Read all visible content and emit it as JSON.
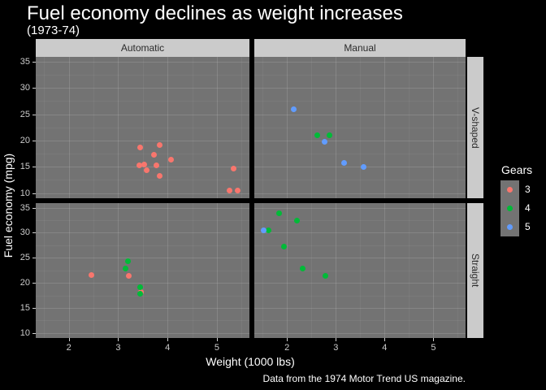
{
  "title": "Fuel economy declines as weight increases",
  "subtitle": "(1973-74)",
  "caption": "Data from the 1974 Motor Trend US magazine.",
  "axes": {
    "x_title": "Weight (1000 lbs)",
    "y_title": "Fuel economy (mpg)",
    "x_ticks": [
      2,
      3,
      4,
      5
    ],
    "y_ticks": [
      10,
      15,
      20,
      25,
      30,
      35
    ]
  },
  "facets": {
    "col_labels": [
      "Automatic",
      "Manual"
    ],
    "row_labels": [
      "V-shaped",
      "Straight"
    ]
  },
  "legend": {
    "title": "Gears",
    "items": [
      {
        "label": "3",
        "color": "#f8766d"
      },
      {
        "label": "4",
        "color": "#00ba38"
      },
      {
        "label": "5",
        "color": "#619cff"
      }
    ]
  },
  "colors": {
    "background": "#000000",
    "panel": "#737373",
    "strip_background": "#cbcbcb",
    "strip_text": "#2b2b2b",
    "tick_text": "#cccccc",
    "title_text": "#ffffff"
  },
  "chart_data": {
    "type": "scatter",
    "title": "Fuel economy declines as weight increases",
    "subtitle": "(1973-74)",
    "xlabel": "Weight (1000 lbs)",
    "ylabel": "Fuel economy (mpg)",
    "facet_cols": [
      "Automatic",
      "Manual"
    ],
    "facet_rows": [
      "V-shaped",
      "Straight"
    ],
    "color_by": "Gears",
    "x_domain": [
      1.33,
      5.66
    ],
    "y_domain": [
      9.0,
      35.9
    ],
    "x_major": [
      2,
      3,
      4,
      5
    ],
    "y_major": [
      10,
      15,
      20,
      25,
      30,
      35
    ],
    "x_minor": [
      1.5,
      2.5,
      3.5,
      4.5,
      5.5
    ],
    "y_minor": [
      12.5,
      17.5,
      22.5,
      27.5,
      32.5
    ],
    "grid": true,
    "legend_position": "right",
    "points": [
      {
        "wt": 3.44,
        "mpg": 18.7,
        "gear": 3,
        "transmission": "Automatic",
        "engine": "V-shaped"
      },
      {
        "wt": 3.57,
        "mpg": 14.3,
        "gear": 3,
        "transmission": "Automatic",
        "engine": "V-shaped"
      },
      {
        "wt": 4.07,
        "mpg": 16.4,
        "gear": 3,
        "transmission": "Automatic",
        "engine": "V-shaped"
      },
      {
        "wt": 3.73,
        "mpg": 17.3,
        "gear": 3,
        "transmission": "Automatic",
        "engine": "V-shaped"
      },
      {
        "wt": 3.78,
        "mpg": 15.2,
        "gear": 3,
        "transmission": "Automatic",
        "engine": "V-shaped"
      },
      {
        "wt": 5.25,
        "mpg": 10.4,
        "gear": 3,
        "transmission": "Automatic",
        "engine": "V-shaped"
      },
      {
        "wt": 5.424,
        "mpg": 10.4,
        "gear": 3,
        "transmission": "Automatic",
        "engine": "V-shaped"
      },
      {
        "wt": 5.345,
        "mpg": 14.7,
        "gear": 3,
        "transmission": "Automatic",
        "engine": "V-shaped"
      },
      {
        "wt": 3.52,
        "mpg": 15.5,
        "gear": 3,
        "transmission": "Automatic",
        "engine": "V-shaped"
      },
      {
        "wt": 3.435,
        "mpg": 15.2,
        "gear": 3,
        "transmission": "Automatic",
        "engine": "V-shaped"
      },
      {
        "wt": 3.84,
        "mpg": 13.3,
        "gear": 3,
        "transmission": "Automatic",
        "engine": "V-shaped"
      },
      {
        "wt": 3.845,
        "mpg": 19.2,
        "gear": 3,
        "transmission": "Automatic",
        "engine": "V-shaped"
      },
      {
        "wt": 2.62,
        "mpg": 21.0,
        "gear": 4,
        "transmission": "Manual",
        "engine": "V-shaped"
      },
      {
        "wt": 2.875,
        "mpg": 21.0,
        "gear": 4,
        "transmission": "Manual",
        "engine": "V-shaped"
      },
      {
        "wt": 2.14,
        "mpg": 26.0,
        "gear": 5,
        "transmission": "Manual",
        "engine": "V-shaped"
      },
      {
        "wt": 3.17,
        "mpg": 15.8,
        "gear": 5,
        "transmission": "Manual",
        "engine": "V-shaped"
      },
      {
        "wt": 2.77,
        "mpg": 19.7,
        "gear": 5,
        "transmission": "Manual",
        "engine": "V-shaped"
      },
      {
        "wt": 3.57,
        "mpg": 15.0,
        "gear": 5,
        "transmission": "Manual",
        "engine": "V-shaped"
      },
      {
        "wt": 3.215,
        "mpg": 21.4,
        "gear": 3,
        "transmission": "Automatic",
        "engine": "Straight"
      },
      {
        "wt": 3.46,
        "mpg": 18.1,
        "gear": 3,
        "transmission": "Automatic",
        "engine": "Straight"
      },
      {
        "wt": 3.19,
        "mpg": 24.4,
        "gear": 4,
        "transmission": "Automatic",
        "engine": "Straight"
      },
      {
        "wt": 3.15,
        "mpg": 22.8,
        "gear": 4,
        "transmission": "Automatic",
        "engine": "Straight"
      },
      {
        "wt": 3.44,
        "mpg": 19.2,
        "gear": 4,
        "transmission": "Automatic",
        "engine": "Straight"
      },
      {
        "wt": 3.44,
        "mpg": 17.8,
        "gear": 4,
        "transmission": "Automatic",
        "engine": "Straight"
      },
      {
        "wt": 2.465,
        "mpg": 21.5,
        "gear": 3,
        "transmission": "Automatic",
        "engine": "Straight"
      },
      {
        "wt": 2.32,
        "mpg": 22.8,
        "gear": 4,
        "transmission": "Manual",
        "engine": "Straight"
      },
      {
        "wt": 2.2,
        "mpg": 32.4,
        "gear": 4,
        "transmission": "Manual",
        "engine": "Straight"
      },
      {
        "wt": 1.615,
        "mpg": 30.4,
        "gear": 4,
        "transmission": "Manual",
        "engine": "Straight"
      },
      {
        "wt": 1.835,
        "mpg": 33.9,
        "gear": 4,
        "transmission": "Manual",
        "engine": "Straight"
      },
      {
        "wt": 1.935,
        "mpg": 27.3,
        "gear": 4,
        "transmission": "Manual",
        "engine": "Straight"
      },
      {
        "wt": 1.513,
        "mpg": 30.4,
        "gear": 5,
        "transmission": "Manual",
        "engine": "Straight"
      },
      {
        "wt": 2.78,
        "mpg": 21.4,
        "gear": 4,
        "transmission": "Manual",
        "engine": "Straight"
      }
    ]
  }
}
